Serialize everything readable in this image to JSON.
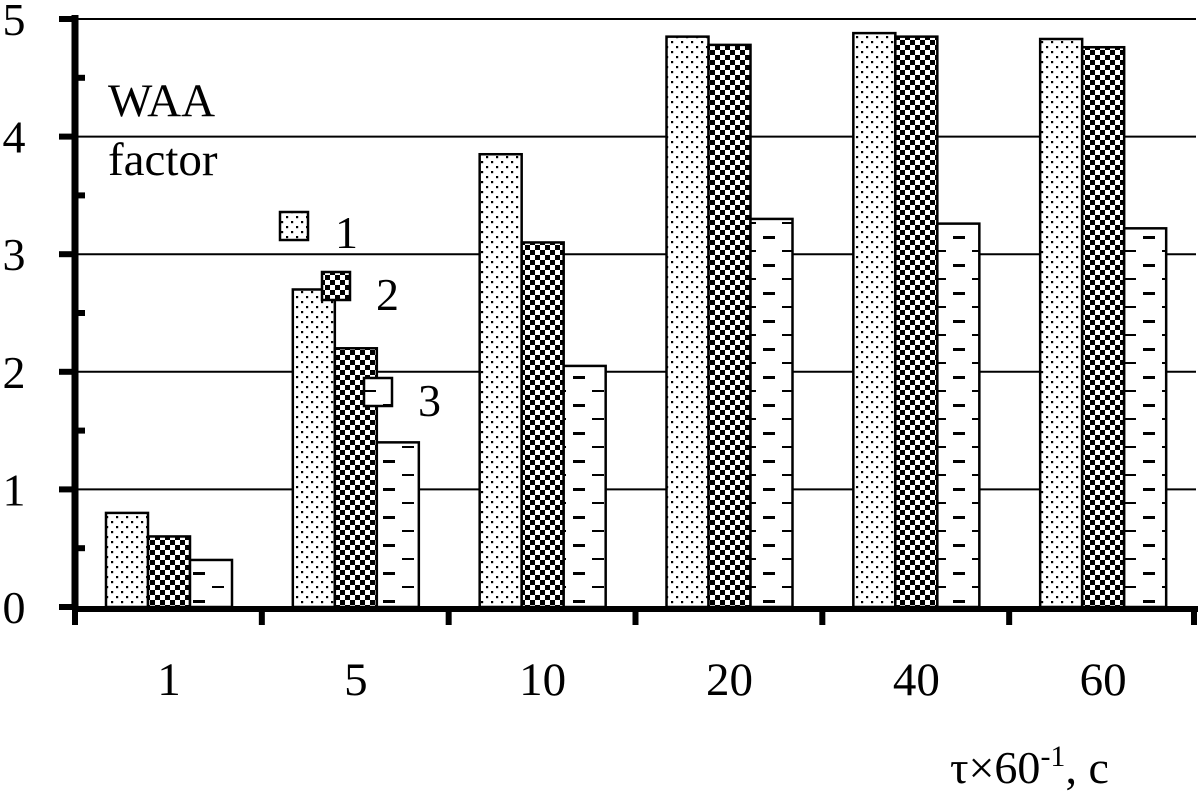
{
  "chart_data": {
    "type": "bar",
    "ylabel": "WAA factor",
    "ylabel_lines": [
      "WAA",
      "factor"
    ],
    "xlabel": "τ×60-1, c",
    "xlabel_parts": {
      "main": "τ×60",
      "sup": "-1",
      "tail": ", c"
    },
    "categories": [
      "1",
      "5",
      "10",
      "20",
      "40",
      "60"
    ],
    "series": [
      {
        "name": "1",
        "pattern": "dots",
        "values": [
          0.8,
          2.7,
          3.85,
          4.85,
          4.88,
          4.83
        ]
      },
      {
        "name": "2",
        "pattern": "checker",
        "values": [
          0.6,
          2.2,
          3.1,
          4.78,
          4.85,
          4.76
        ]
      },
      {
        "name": "3",
        "pattern": "dashes",
        "values": [
          0.4,
          1.4,
          2.05,
          3.3,
          3.26,
          3.22
        ]
      }
    ],
    "ylim": [
      0,
      5
    ],
    "yticks": [
      "0",
      "1",
      "2",
      "3",
      "4",
      "5"
    ],
    "grid": true,
    "legend": "inside top-left"
  },
  "colors": {
    "ink": "#000000",
    "background": "#ffffff"
  }
}
